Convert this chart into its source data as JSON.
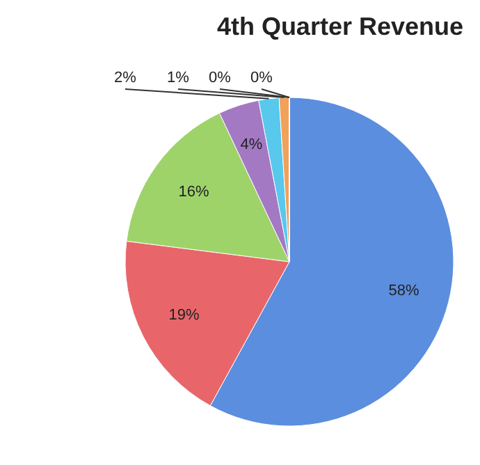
{
  "chart_data": {
    "type": "pie",
    "title": "4th Quarter Revenue",
    "categories": [
      null,
      null,
      null,
      null,
      null,
      null,
      null,
      null
    ],
    "values": [
      58,
      19,
      16,
      4,
      2,
      1,
      0,
      0
    ],
    "colors": [
      "#5b8ede",
      "#e8666a",
      "#9ed36a",
      "#a479c4",
      "#58c8ec",
      "#f0a25a",
      "#c79080",
      "#9fb0d8"
    ],
    "value_labels": [
      "58%",
      "19%",
      "16%",
      "4%",
      "2%",
      "1%",
      "0%",
      "0%"
    ]
  }
}
